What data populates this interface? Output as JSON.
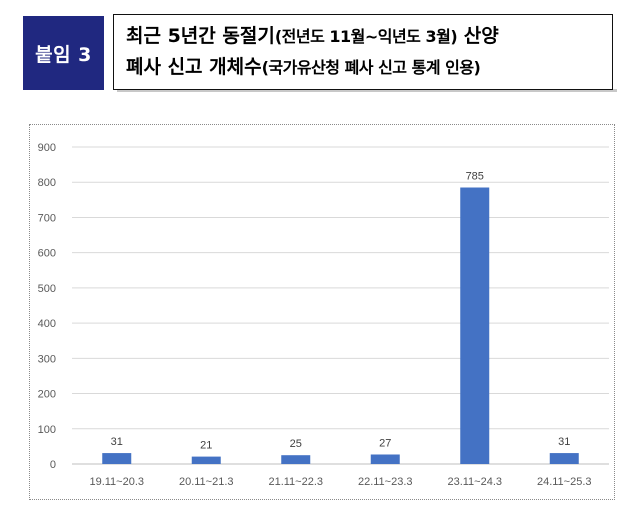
{
  "header": {
    "tag": "붙임 3",
    "title_line1_main": "최근 5년간 동절기",
    "title_line1_sub": "(전년도 11월~익년도 3월)",
    "title_line1_end": " 산양",
    "title_line2_main": "폐사 신고 개체수",
    "title_line2_sub": "(국가유산청 폐사 신고 통계 인용)"
  },
  "colors": {
    "tag_background": "#202880",
    "bar": "#4472c4",
    "grid": "#d9d9d9"
  },
  "chart_data": {
    "type": "bar",
    "title": "",
    "xlabel": "",
    "ylabel": "",
    "categories": [
      "19.11~20.3",
      "20.11~21.3",
      "21.11~22.3",
      "22.11~23.3",
      "23.11~24.3",
      "24.11~25.3"
    ],
    "values": [
      31,
      21,
      25,
      27,
      785,
      31
    ],
    "ylim": [
      0,
      900
    ],
    "yticks": [
      0,
      100,
      200,
      300,
      400,
      500,
      600,
      700,
      800,
      900
    ],
    "grid": true,
    "data_labels": true,
    "legend": "none"
  }
}
